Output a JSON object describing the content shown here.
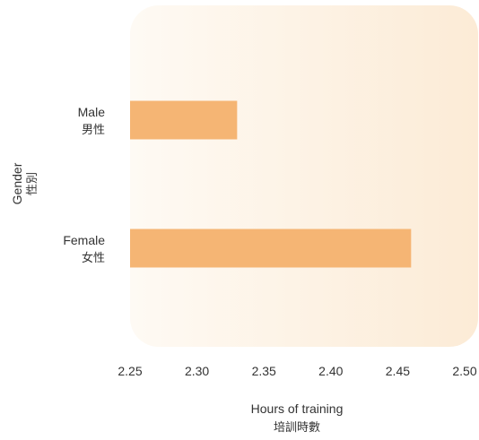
{
  "chart_data": {
    "type": "bar",
    "orientation": "horizontal",
    "categories": [
      {
        "en": "Male",
        "zh": "男性"
      },
      {
        "en": "Female",
        "zh": "女性"
      }
    ],
    "values": [
      2.33,
      2.46
    ],
    "xlabel": {
      "en": "Hours of training",
      "zh": "培訓時數"
    },
    "ylabel": {
      "en": "Gender",
      "zh": "性別"
    },
    "xlim": [
      2.25,
      2.5
    ],
    "xticks": [
      "2.25",
      "2.30",
      "2.35",
      "2.40",
      "2.45",
      "2.50"
    ],
    "grid": false,
    "legend": "none",
    "colors": {
      "bar": "#f5b574",
      "panel_left": "#fefaf4",
      "panel_right": "#fcebd6",
      "text": "#333333"
    }
  }
}
